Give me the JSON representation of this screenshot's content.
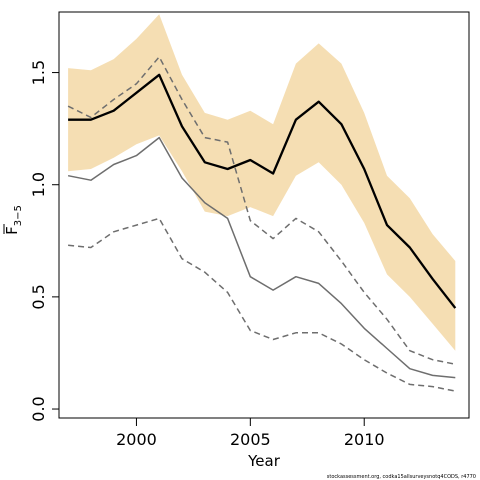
{
  "chart_data": {
    "type": "line",
    "xlabel": "Year",
    "ylabel_main": "F",
    "ylabel_sub": "3−5",
    "xlim": [
      1996.6,
      2014.6
    ],
    "ylim": [
      -0.04,
      1.77
    ],
    "xticks": [
      2000,
      2005,
      2010
    ],
    "yticks": [
      0.0,
      0.5,
      1.0,
      1.5
    ],
    "ytick_labels": [
      "0.0",
      "0.5",
      "1.0",
      "1.5"
    ],
    "grid": false,
    "x": [
      1997,
      1998,
      1999,
      2000,
      2001,
      2002,
      2003,
      2004,
      2005,
      2006,
      2007,
      2008,
      2009,
      2010,
      2011,
      2012,
      2013,
      2014
    ],
    "band": {
      "color": "#f5deb3",
      "upper": [
        1.52,
        1.51,
        1.56,
        1.65,
        1.76,
        1.49,
        1.32,
        1.29,
        1.33,
        1.27,
        1.54,
        1.63,
        1.54,
        1.32,
        1.04,
        0.94,
        0.78,
        0.66
      ],
      "lower": [
        1.06,
        1.07,
        1.12,
        1.18,
        1.22,
        1.06,
        0.88,
        0.86,
        0.9,
        0.86,
        1.04,
        1.1,
        1.0,
        0.83,
        0.6,
        0.5,
        0.38,
        0.26
      ]
    },
    "series": [
      {
        "values": [
          1.29,
          1.29,
          1.33,
          1.41,
          1.49,
          1.26,
          1.1,
          1.07,
          1.11,
          1.05,
          1.29,
          1.37,
          1.27,
          1.07,
          0.82,
          0.72,
          0.58,
          0.45
        ],
        "color": "#000000",
        "width": 2.3,
        "dash": "none"
      },
      {
        "values": [
          1.35,
          1.3,
          1.38,
          1.45,
          1.57,
          1.38,
          1.21,
          1.19,
          0.84,
          0.76,
          0.85,
          0.79,
          0.66,
          0.52,
          0.4,
          0.26,
          0.22,
          0.2
        ],
        "color": "#6e6e6e",
        "width": 1.5,
        "dash": "6,4"
      },
      {
        "values": [
          1.04,
          1.02,
          1.09,
          1.13,
          1.21,
          1.03,
          0.92,
          0.85,
          0.59,
          0.53,
          0.59,
          0.56,
          0.47,
          0.36,
          0.27,
          0.18,
          0.15,
          0.14
        ],
        "color": "#6e6e6e",
        "width": 1.5,
        "dash": "none"
      },
      {
        "values": [
          0.73,
          0.72,
          0.79,
          0.82,
          0.85,
          0.67,
          0.61,
          0.52,
          0.35,
          0.31,
          0.34,
          0.34,
          0.29,
          0.22,
          0.16,
          0.11,
          0.1,
          0.08
        ],
        "color": "#6e6e6e",
        "width": 1.5,
        "dash": "6,4"
      }
    ]
  },
  "footer": {
    "credit": "stockassessment.org, codka15allsurveysnotq4CODS, r4770"
  }
}
